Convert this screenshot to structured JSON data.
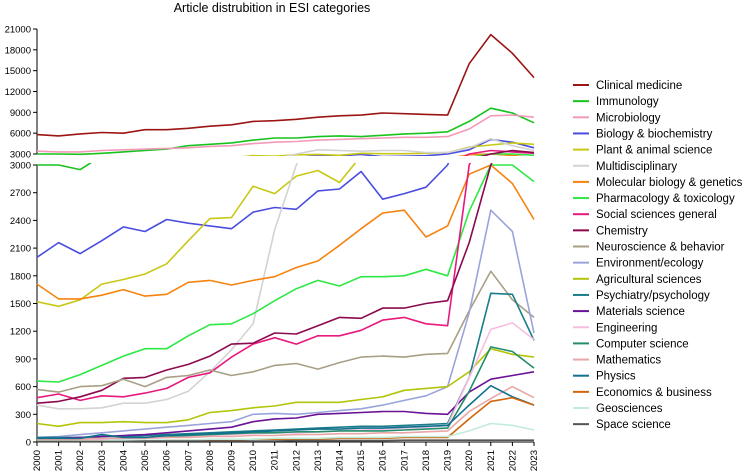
{
  "chart_data": {
    "type": "line",
    "title": "Article distrubition in ESI categories",
    "xlabel": "",
    "ylabel": "",
    "x": [
      2000,
      2001,
      2002,
      2003,
      2004,
      2005,
      2006,
      2007,
      2008,
      2009,
      2010,
      2011,
      2012,
      2013,
      2014,
      2015,
      2016,
      2017,
      2018,
      2019,
      2020,
      2021,
      2022,
      2023
    ],
    "y_axis_break": {
      "lower_range": [
        0,
        3000
      ],
      "upper_range": [
        3000,
        21000
      ]
    },
    "lower_ticks": [
      0,
      300,
      600,
      900,
      1200,
      1500,
      1800,
      2100,
      2400,
      2700,
      3000
    ],
    "upper_ticks": [
      3000,
      6000,
      9000,
      12000,
      15000,
      18000,
      21000
    ],
    "legend_position": "right",
    "series": [
      {
        "name": "Clinical medicine",
        "color": "#9b1515",
        "values": [
          5800,
          5600,
          5900,
          6100,
          6000,
          6500,
          6500,
          6700,
          7000,
          7200,
          7700,
          7800,
          8000,
          8300,
          8500,
          8600,
          8900,
          8800,
          8700,
          8600,
          16000,
          20200,
          17500,
          14000
        ]
      },
      {
        "name": "Immunology",
        "color": "#19c21f",
        "values": [
          3000,
          3000,
          2950,
          3100,
          3300,
          3500,
          3700,
          4200,
          4400,
          4600,
          5000,
          5300,
          5300,
          5500,
          5600,
          5500,
          5700,
          5900,
          6000,
          6200,
          7700,
          9600,
          8900,
          7500
        ]
      },
      {
        "name": "Microbiology",
        "color": "#f29ab9",
        "values": [
          3400,
          3300,
          3300,
          3500,
          3600,
          3700,
          3800,
          3900,
          4100,
          4200,
          4500,
          4700,
          4800,
          5000,
          5100,
          5200,
          5300,
          5400,
          5400,
          5500,
          6600,
          8500,
          8600,
          8300
        ]
      },
      {
        "name": "Biology & biochemistry",
        "color": "#4a4de0",
        "values": [
          2000,
          2160,
          2040,
          2180,
          2330,
          2280,
          2410,
          2370,
          2340,
          2310,
          2490,
          2540,
          2520,
          2720,
          2740,
          2930,
          2630,
          2690,
          2760,
          3000,
          3600,
          5100,
          4700,
          3900
        ]
      },
      {
        "name": "Plant & animal science",
        "color": "#c8c816",
        "values": [
          1520,
          1470,
          1540,
          1710,
          1760,
          1820,
          1930,
          2180,
          2420,
          2430,
          2770,
          2690,
          2880,
          2940,
          2810,
          3100,
          3050,
          3050,
          3100,
          3200,
          4000,
          4300,
          4600,
          4400
        ]
      },
      {
        "name": "Multidisciplinary",
        "color": "#d3d3d3",
        "values": [
          400,
          360,
          360,
          370,
          420,
          420,
          460,
          550,
          760,
          1000,
          1280,
          2300,
          3000,
          3600,
          3500,
          3400,
          3500,
          3500,
          3200,
          3200,
          3900,
          5200,
          4200,
          3500
        ]
      },
      {
        "name": "Molecular biology & genetics",
        "color": "#f6820f",
        "values": [
          1710,
          1550,
          1550,
          1590,
          1650,
          1580,
          1600,
          1730,
          1750,
          1700,
          1750,
          1790,
          1890,
          1960,
          2130,
          2310,
          2480,
          2510,
          2220,
          2340,
          2900,
          3000,
          2800,
          2410
        ]
      },
      {
        "name": "Pharmacology & toxicology",
        "color": "#2de845",
        "values": [
          660,
          650,
          730,
          830,
          930,
          1010,
          1010,
          1150,
          1270,
          1280,
          1390,
          1530,
          1660,
          1750,
          1690,
          1790,
          1790,
          1800,
          1870,
          1800,
          2500,
          3000,
          3000,
          2820
        ]
      },
      {
        "name": "Social sciences general",
        "color": "#e8197d",
        "values": [
          480,
          520,
          450,
          500,
          490,
          530,
          580,
          700,
          750,
          920,
          1060,
          1130,
          1060,
          1150,
          1150,
          1210,
          1320,
          1350,
          1280,
          1260,
          3000,
          3500,
          3300,
          3100
        ]
      },
      {
        "name": "Chemistry",
        "color": "#8b0a4e",
        "values": [
          420,
          440,
          490,
          560,
          690,
          700,
          780,
          840,
          930,
          1060,
          1070,
          1180,
          1170,
          1260,
          1350,
          1340,
          1450,
          1450,
          1500,
          1530,
          2160,
          3000,
          3500,
          3200
        ]
      },
      {
        "name": "Neuroscience & behavior",
        "color": "#a89f85",
        "values": [
          570,
          540,
          600,
          610,
          680,
          600,
          700,
          720,
          780,
          720,
          760,
          830,
          850,
          790,
          860,
          920,
          930,
          920,
          950,
          960,
          1420,
          1850,
          1540,
          1350
        ]
      },
      {
        "name": "Environment/ecology",
        "color": "#9aa3dc",
        "values": [
          50,
          60,
          80,
          100,
          120,
          140,
          160,
          180,
          200,
          220,
          300,
          310,
          300,
          320,
          340,
          360,
          400,
          450,
          500,
          600,
          1400,
          2510,
          2280,
          1180
        ]
      },
      {
        "name": "Agricultural sciences",
        "color": "#b4c40a",
        "values": [
          200,
          170,
          210,
          210,
          220,
          210,
          210,
          240,
          320,
          340,
          370,
          390,
          430,
          430,
          430,
          460,
          490,
          560,
          580,
          600,
          760,
          1010,
          950,
          920
        ]
      },
      {
        "name": "Psychiatry/psychology",
        "color": "#1b7d8a",
        "values": [
          50,
          50,
          50,
          60,
          60,
          70,
          80,
          90,
          100,
          110,
          120,
          130,
          140,
          150,
          160,
          170,
          170,
          180,
          190,
          200,
          700,
          1610,
          1600,
          1100
        ]
      },
      {
        "name": "Materials science",
        "color": "#6a1396",
        "values": [
          40,
          40,
          50,
          60,
          70,
          80,
          100,
          120,
          140,
          160,
          220,
          250,
          260,
          300,
          310,
          320,
          330,
          330,
          310,
          300,
          540,
          680,
          720,
          760
        ]
      },
      {
        "name": "Engineering",
        "color": "#f7bde0",
        "values": [
          20,
          20,
          30,
          30,
          40,
          40,
          50,
          60,
          70,
          80,
          90,
          100,
          100,
          110,
          120,
          130,
          140,
          150,
          160,
          180,
          700,
          1220,
          1290,
          1110
        ]
      },
      {
        "name": "Computer science",
        "color": "#238d6c",
        "values": [
          30,
          30,
          40,
          40,
          40,
          50,
          60,
          70,
          80,
          90,
          100,
          100,
          110,
          110,
          120,
          120,
          120,
          130,
          140,
          150,
          550,
          1030,
          980,
          800
        ]
      },
      {
        "name": "Mathematics",
        "color": "#e8a6a6",
        "values": [
          30,
          30,
          30,
          40,
          40,
          40,
          50,
          50,
          60,
          60,
          70,
          70,
          80,
          80,
          90,
          90,
          100,
          100,
          110,
          120,
          330,
          470,
          600,
          480
        ]
      },
      {
        "name": "Physics",
        "color": "#12708f",
        "values": [
          40,
          40,
          40,
          80,
          50,
          50,
          70,
          80,
          90,
          100,
          110,
          120,
          130,
          140,
          140,
          150,
          150,
          160,
          170,
          180,
          400,
          610,
          490,
          400
        ]
      },
      {
        "name": "Economics & business",
        "color": "#d0650c",
        "values": [
          10,
          10,
          10,
          10,
          10,
          10,
          20,
          20,
          20,
          20,
          30,
          30,
          30,
          30,
          40,
          40,
          40,
          50,
          50,
          50,
          250,
          440,
          480,
          400
        ]
      },
      {
        "name": "Geosciences",
        "color": "#c2ecd9",
        "values": [
          10,
          10,
          10,
          10,
          20,
          20,
          20,
          20,
          30,
          30,
          30,
          40,
          40,
          40,
          50,
          50,
          50,
          60,
          60,
          60,
          120,
          200,
          180,
          130
        ]
      },
      {
        "name": "Space science",
        "color": "#555555",
        "values": [
          5,
          5,
          5,
          5,
          5,
          10,
          10,
          10,
          10,
          10,
          10,
          10,
          15,
          15,
          15,
          15,
          15,
          20,
          20,
          20,
          20,
          20,
          20,
          20
        ]
      }
    ]
  }
}
